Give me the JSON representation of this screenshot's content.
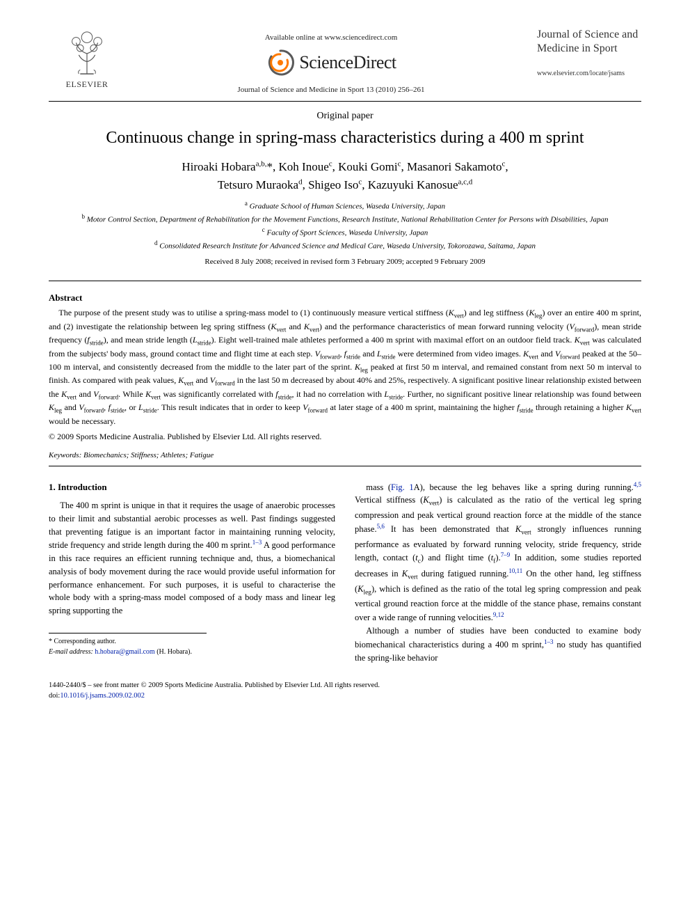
{
  "header": {
    "available_line": "Available online at www.sciencedirect.com",
    "sciencedirect": "ScienceDirect",
    "journal_ref": "Journal of Science and Medicine in Sport 13 (2010) 256–261",
    "elsevier": "ELSEVIER",
    "journal_title_lines": "Journal of Science and Medicine in Sport",
    "journal_url": "www.elsevier.com/locate/jsams"
  },
  "article": {
    "type": "Original paper",
    "title": "Continuous change in spring-mass characteristics during a 400 m sprint",
    "authors_html": "Hiroaki Hobara<sup>a,b,</sup>*, Koh Inoue<sup>c</sup>, Kouki Gomi<sup>c</sup>, Masanori Sakamoto<sup>c</sup>,<br>Tetsuro Muraoka<sup>d</sup>, Shigeo Iso<sup>c</sup>, Kazuyuki Kanosue<sup>a,c,d</sup>",
    "affiliations": [
      {
        "sup": "a",
        "text": "Graduate School of Human Sciences, Waseda University, Japan"
      },
      {
        "sup": "b",
        "text": "Motor Control Section, Department of Rehabilitation for the Movement Functions, Research Institute, National Rehabilitation Center for Persons with Disabilities, Japan"
      },
      {
        "sup": "c",
        "text": "Faculty of Sport Sciences, Waseda University, Japan"
      },
      {
        "sup": "d",
        "text": "Consolidated Research Institute for Advanced Science and Medical Care, Waseda University, Tokorozawa, Saitama, Japan"
      }
    ],
    "dates": "Received 8 July 2008; received in revised form 3 February 2009; accepted 9 February 2009"
  },
  "abstract": {
    "heading": "Abstract",
    "body_html": "The purpose of the present study was to utilise a spring-mass model to (1) continuously measure vertical stiffness (<span class=\"ital\">K</span><span class=\"sub\">vert</span>) and leg stiffness (<span class=\"ital\">K</span><span class=\"sub\">leg</span>) over an entire 400 m sprint, and (2) investigate the relationship between leg spring stiffness (<span class=\"ital\">K</span><span class=\"sub\">vert</span> and <span class=\"ital\">K</span><span class=\"sub\">vert</span>) and the performance characteristics of mean forward running velocity (<span class=\"ital\">V</span><span class=\"sub\">forward</span>), mean stride frequency (<span class=\"ital\">f</span><span class=\"sub\">stride</span>), and mean stride length (<span class=\"ital\">L</span><span class=\"sub\">stride</span>). Eight well-trained male athletes performed a 400 m sprint with maximal effort on an outdoor field track. <span class=\"ital\">K</span><span class=\"sub\">vert</span> was calculated from the subjects' body mass, ground contact time and flight time at each step. <span class=\"ital\">V</span><span class=\"sub\">forward</span>, <span class=\"ital\">f</span><span class=\"sub\">stride</span> and <span class=\"ital\">L</span><span class=\"sub\">stride</span> were determined from video images. <span class=\"ital\">K</span><span class=\"sub\">vert</span> and <span class=\"ital\">V</span><span class=\"sub\">forward</span> peaked at the 50–100 m interval, and consistently decreased from the middle to the later part of the sprint. <span class=\"ital\">K</span><span class=\"sub\">leg</span> peaked at first 50 m interval, and remained constant from next 50 m interval to finish. As compared with peak values, <span class=\"ital\">K</span><span class=\"sub\">vert</span> and <span class=\"ital\">V</span><span class=\"sub\">forward</span> in the last 50 m decreased by about 40% and 25%, respectively. A significant positive linear relationship existed between the <span class=\"ital\">K</span><span class=\"sub\">vert</span> and <span class=\"ital\">V</span><span class=\"sub\">forward</span>. While <span class=\"ital\">K</span><span class=\"sub\">vert</span> was significantly correlated with <span class=\"ital\">f</span><span class=\"sub\">stride</span>, it had no correlation with <span class=\"ital\">L</span><span class=\"sub\">stride</span>. Further, no significant positive linear relationship was found between <span class=\"ital\">K</span><span class=\"sub\">leg</span> and <span class=\"ital\">V</span><span class=\"sub\">forward</span>, <span class=\"ital\">f</span><span class=\"sub\">stride</span>, or <span class=\"ital\">L</span><span class=\"sub\">stride</span>. This result indicates that in order to keep <span class=\"ital\">V</span><span class=\"sub\">forward</span> at later stage of a 400 m sprint, maintaining the higher <span class=\"ital\">f</span><span class=\"sub\">stride</span> through retaining a higher <span class=\"ital\">K</span><span class=\"sub\">vert</span> would be necessary.",
    "copyright": "© 2009 Sports Medicine Australia. Published by Elsevier Ltd. All rights reserved.",
    "keywords_label": "Keywords:",
    "keywords": " Biomechanics; Stiffness; Athletes; Fatigue"
  },
  "intro": {
    "heading": "1. Introduction",
    "col1_html": "The 400 m sprint is unique in that it requires the usage of anaerobic processes to their limit and substantial aerobic processes as well. Past findings suggested that preventing fatigue is an important factor in maintaining running velocity, stride frequency and stride length during the 400 m sprint.<a href=\"#\"><sup>1–3</sup></a> A good performance in this race requires an efficient running technique and, thus, a biomechanical analysis of body movement during the race would provide useful information for performance enhancement. For such purposes, it is useful to characterise the whole body with a spring-mass model composed of a body mass and linear leg spring supporting the",
    "col2_p1_html": "mass (<a href=\"#\">Fig. 1</a>A), because the leg behaves like a spring during running.<a href=\"#\"><sup>4,5</sup></a> Vertical stiffness (<span class=\"ital\">K</span><span class=\"sub\">vert</span>) is calculated as the ratio of the vertical leg spring compression and peak vertical ground reaction force at the middle of the stance phase.<a href=\"#\"><sup>5,6</sup></a> It has been demonstrated that <span class=\"ital\">K</span><span class=\"sub\">vert</span> strongly influences running performance as evaluated by forward running velocity, stride frequency, stride length, contact (<span class=\"ital\">t</span><span class=\"sub\">c</span>) and flight time (<span class=\"ital\">t</span><span class=\"sub\">f</span>).<a href=\"#\"><sup>7–9</sup></a> In addition, some studies reported decreases in <span class=\"ital\">K</span><span class=\"sub\">vert</span> during fatigued running.<a href=\"#\"><sup>10,11</sup></a> On the other hand, leg stiffness (<span class=\"ital\">K</span><span class=\"sub\">leg</span>), which is defined as the ratio of the total leg spring compression and peak vertical ground reaction force at the middle of the stance phase, remains constant over a wide range of running velocities.<a href=\"#\"><sup>9,12</sup></a>",
    "col2_p2_html": "Although a number of studies have been conducted to examine body biomechanical characteristics during a 400 m sprint,<a href=\"#\"><sup>1–3</sup></a> no study has quantified the spring-like behavior"
  },
  "corresponding": {
    "star": "* Corresponding author.",
    "email_label": "E-mail address:",
    "email": "h.hobara@gmail.com",
    "email_tail": " (H. Hobara)."
  },
  "footer": {
    "line1": "1440-2440/$ – see front matter © 2009 Sports Medicine Australia. Published by Elsevier Ltd. All rights reserved.",
    "doi_label": "doi:",
    "doi": "10.1016/j.jsams.2009.02.002"
  },
  "colors": {
    "link": "#0020aa",
    "text": "#000000",
    "bg": "#ffffff",
    "logo_orange": "#ff7a00",
    "logo_gray": "#5a5a5a"
  }
}
